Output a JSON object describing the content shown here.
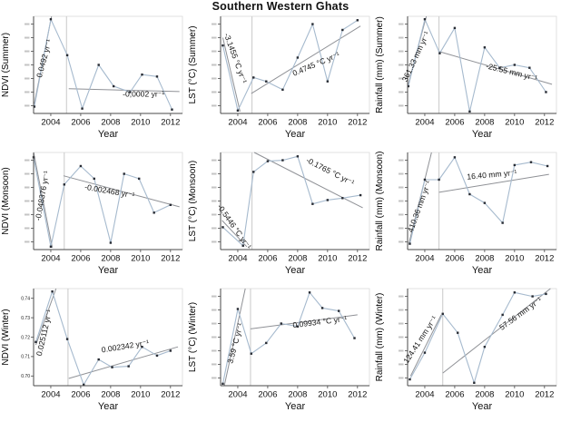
{
  "title": "Southern Western Ghats",
  "colors": {
    "series_line": "#a6bace",
    "marker": "#272b33",
    "trend_line": "#8f9196",
    "vline": "#c9c9c9",
    "axis_dark": "#4a4a4a",
    "axis_light": "#dadada",
    "text": "#111111",
    "annotation": "#141414",
    "tick_smudge": "#8a8a8a"
  },
  "axis": {
    "xlabel": "Year",
    "x_ticks": [
      2004,
      2006,
      2008,
      2010,
      2012
    ],
    "xlim": [
      2002.85,
      2012.8
    ],
    "y_note": "y values are normalized plot fractions 0-1; y tick labels mostly illegible in source"
  },
  "chart_data": [
    {
      "id": "ndvi-summer",
      "type": "line",
      "ylabel": "NDVI (Summer)",
      "xlabel": "Year",
      "x": [
        2002.9,
        2004.0,
        2005.1,
        2006.1,
        2007.2,
        2008.2,
        2009.3,
        2010.1,
        2011.1,
        2012.1
      ],
      "y": [
        0.07,
        0.97,
        0.6,
        0.05,
        0.5,
        0.28,
        0.22,
        0.4,
        0.38,
        0.04
      ],
      "vline_x": 2005.05,
      "trends": [
        {
          "x1": 2002.9,
          "y1": 0.1,
          "x2": 2004.05,
          "y2": 1.0,
          "label": "0.0492 yr⁻¹",
          "label_x": 2003.72,
          "label_y": 0.56,
          "label_rot": -75
        },
        {
          "x1": 2005.2,
          "y1": 0.255,
          "x2": 2012.6,
          "y2": 0.225,
          "label": "-0,0002 yr⁻¹",
          "label_x": 2010.2,
          "label_y": 0.175,
          "label_rot": 0
        }
      ]
    },
    {
      "id": "lst-summer",
      "type": "line",
      "ylabel": "LST (°C) (Summer)",
      "xlabel": "Year",
      "x": [
        2003.0,
        2004.0,
        2005.05,
        2005.9,
        2007.0,
        2008.0,
        2009.0,
        2010.0,
        2011.0,
        2012.0
      ],
      "y": [
        0.7,
        0.03,
        0.37,
        0.33,
        0.245,
        0.575,
        0.92,
        0.33,
        0.86,
        0.96
      ],
      "vline_x": 2004.95,
      "trends": [
        {
          "x1": 2003.0,
          "y1": 0.78,
          "x2": 2004.15,
          "y2": 0.02,
          "label": "-3.1455 °C yr⁻¹",
          "label_x": 2003.68,
          "label_y": 0.56,
          "label_rot": 70
        },
        {
          "x1": 2004.9,
          "y1": 0.205,
          "x2": 2012.2,
          "y2": 0.9,
          "label": "0.4745 °C yr⁻¹",
          "label_x": 2009.3,
          "label_y": 0.485,
          "label_rot": -23
        }
      ]
    },
    {
      "id": "rainfall-summer",
      "type": "line",
      "ylabel": "Rainfall (mm) (Summer)",
      "xlabel": "Year",
      "x": [
        2002.9,
        2004.0,
        2005.0,
        2006.0,
        2007.0,
        2008.0,
        2009.0,
        2010.0,
        2011.0,
        2012.1
      ],
      "y": [
        0.28,
        0.97,
        0.62,
        0.88,
        0.02,
        0.68,
        0.47,
        0.5,
        0.47,
        0.22
      ],
      "vline_x": 2004.95,
      "trends": [
        {
          "x1": 2002.9,
          "y1": 0.3,
          "x2": 2004.1,
          "y2": 1.0,
          "label": "361.33 mm yr⁻¹",
          "label_x": 2003.56,
          "label_y": 0.575,
          "label_rot": -65
        },
        {
          "x1": 2004.9,
          "y1": 0.64,
          "x2": 2012.5,
          "y2": 0.3,
          "label": "-25.55 mm yr⁻¹",
          "label_x": 2009.76,
          "label_y": 0.4,
          "label_rot": 14
        }
      ]
    },
    {
      "id": "ndvi-monsoon",
      "type": "line",
      "ylabel": "NDVI (Monsoon)",
      "xlabel": "Year",
      "x": [
        2002.85,
        2004.0,
        2004.9,
        2006.0,
        2006.9,
        2008.0,
        2008.9,
        2009.9,
        2010.9,
        2012.0
      ],
      "y": [
        0.95,
        0.03,
        0.67,
        0.86,
        0.73,
        0.07,
        0.78,
        0.73,
        0.38,
        0.46
      ],
      "vline_x": 2004.9,
      "trends": [
        {
          "x1": 2002.85,
          "y1": 1.0,
          "x2": 2004.1,
          "y2": 0.02,
          "label": "-0.048376 yr⁻¹",
          "label_x": 2003.6,
          "label_y": 0.55,
          "label_rot": -80
        },
        {
          "x1": 2004.85,
          "y1": 0.76,
          "x2": 2012.6,
          "y2": 0.44,
          "label": "-0.002468 yr⁻¹",
          "label_x": 2007.9,
          "label_y": 0.575,
          "label_rot": 10
        }
      ]
    },
    {
      "id": "lst-monsoon",
      "type": "line",
      "ylabel": "LST (°C) (Monsoon)",
      "xlabel": "Year",
      "x": [
        2003.0,
        2004.35,
        2005.05,
        2006.0,
        2007.0,
        2008.0,
        2009.0,
        2010.0,
        2011.0,
        2012.2
      ],
      "y": [
        0.23,
        0.04,
        0.8,
        0.91,
        0.92,
        0.96,
        0.47,
        0.51,
        0.53,
        0.56
      ],
      "vline_x": 2004.95,
      "trends": [
        {
          "x1": 2002.95,
          "y1": 0.3,
          "x2": 2004.6,
          "y2": 0.03,
          "label": "-0.5446 °C yr⁻¹",
          "label_x": 2003.62,
          "label_y": 0.22,
          "label_rot": 55
        },
        {
          "x1": 2005.1,
          "y1": 1.0,
          "x2": 2012.35,
          "y2": 0.43,
          "label": "-0.1765 °C yr⁻¹",
          "label_x": 2010.1,
          "label_y": 0.78,
          "label_rot": 27
        }
      ]
    },
    {
      "id": "rainfall-monsoon",
      "type": "line",
      "ylabel": "Rainfall (mm) (Monsoon)",
      "xlabel": "Year",
      "x": [
        2003.0,
        2004.0,
        2004.95,
        2006.0,
        2007.0,
        2008.0,
        2009.2,
        2010.0,
        2011.1,
        2012.2
      ],
      "y": [
        0.06,
        0.72,
        0.72,
        0.95,
        0.57,
        0.48,
        0.275,
        0.87,
        0.9,
        0.86
      ],
      "vline_x": 2004.95,
      "trends": [
        {
          "x1": 2002.95,
          "y1": 0.07,
          "x2": 2004.45,
          "y2": 1.0,
          "label": "410.36 mm yr⁻¹",
          "label_x": 2003.8,
          "label_y": 0.435,
          "label_rot": -70
        },
        {
          "x1": 2004.95,
          "y1": 0.59,
          "x2": 2012.3,
          "y2": 0.775,
          "label": "16.40 mm yr⁻¹",
          "label_x": 2008.5,
          "label_y": 0.745,
          "label_rot": -5
        }
      ]
    },
    {
      "id": "ndvi-winter",
      "type": "line",
      "ylabel": "NDVI (Winter)",
      "xlabel": "Year",
      "x": [
        2003.0,
        2004.1,
        2005.1,
        2006.2,
        2007.2,
        2008.1,
        2009.2,
        2010.1,
        2011.1,
        2012.0
      ],
      "y": [
        0.45,
        0.97,
        0.48,
        0.01,
        0.27,
        0.19,
        0.2,
        0.4,
        0.31,
        0.36
      ],
      "vline_x": 2005.15,
      "y_ticks": [
        {
          "f": 0.9,
          "label": "0.74"
        },
        {
          "f": 0.7,
          "label": "0.73"
        },
        {
          "f": 0.5,
          "label": "0.72"
        },
        {
          "f": 0.3,
          "label": "0.71"
        },
        {
          "f": 0.1,
          "label": "0.70"
        }
      ],
      "trends": [
        {
          "x1": 2003.0,
          "y1": 0.42,
          "x2": 2004.35,
          "y2": 1.0,
          "label": "0.025112 yr⁻¹",
          "label_x": 2003.73,
          "label_y": 0.54,
          "label_rot": -77
        },
        {
          "x1": 2005.2,
          "y1": 0.075,
          "x2": 2012.5,
          "y2": 0.4,
          "label": "0.002342 yr⁻¹",
          "label_x": 2009.0,
          "label_y": 0.38,
          "label_rot": -9
        }
      ]
    },
    {
      "id": "lst-winter",
      "type": "line",
      "ylabel": "LST (°C) (Winter)",
      "xlabel": "Year",
      "x": [
        2003.0,
        2004.0,
        2004.9,
        2005.9,
        2006.9,
        2008.0,
        2008.8,
        2009.65,
        2010.75,
        2011.8
      ],
      "y": [
        0.02,
        0.79,
        0.33,
        0.44,
        0.64,
        0.61,
        0.96,
        0.8,
        0.77,
        0.49
      ],
      "vline_x": 2004.85,
      "trends": [
        {
          "x1": 2003.1,
          "y1": 0.0,
          "x2": 2004.5,
          "y2": 1.0,
          "label": "3.59 °C yr⁻¹",
          "label_x": 2004.0,
          "label_y": 0.43,
          "label_rot": -75
        },
        {
          "x1": 2004.85,
          "y1": 0.585,
          "x2": 2012.0,
          "y2": 0.73,
          "label": "0.09934 °C yr⁻¹",
          "label_x": 2009.5,
          "label_y": 0.63,
          "label_rot": -7
        }
      ]
    },
    {
      "id": "rainfall-winter",
      "type": "line",
      "ylabel": "Rainfall (mm) (Winter)",
      "xlabel": "Year",
      "x": [
        2003.0,
        2004.0,
        2005.2,
        2006.2,
        2007.3,
        2008.0,
        2009.2,
        2010.0,
        2011.2,
        2012.1
      ],
      "y": [
        0.065,
        0.34,
        0.74,
        0.545,
        0.03,
        0.4,
        0.73,
        0.96,
        0.92,
        0.945
      ],
      "vline_x": 2005.2,
      "trends": [
        {
          "x1": 2003.05,
          "y1": 0.1,
          "x2": 2005.1,
          "y2": 0.73,
          "label": "124.41 mm yr⁻¹",
          "label_x": 2003.84,
          "label_y": 0.46,
          "label_rot": -57
        },
        {
          "x1": 2005.2,
          "y1": 0.13,
          "x2": 2012.4,
          "y2": 1.0,
          "label": "57.56 mm yr⁻¹",
          "label_x": 2010.5,
          "label_y": 0.72,
          "label_rot": -36
        }
      ]
    }
  ]
}
